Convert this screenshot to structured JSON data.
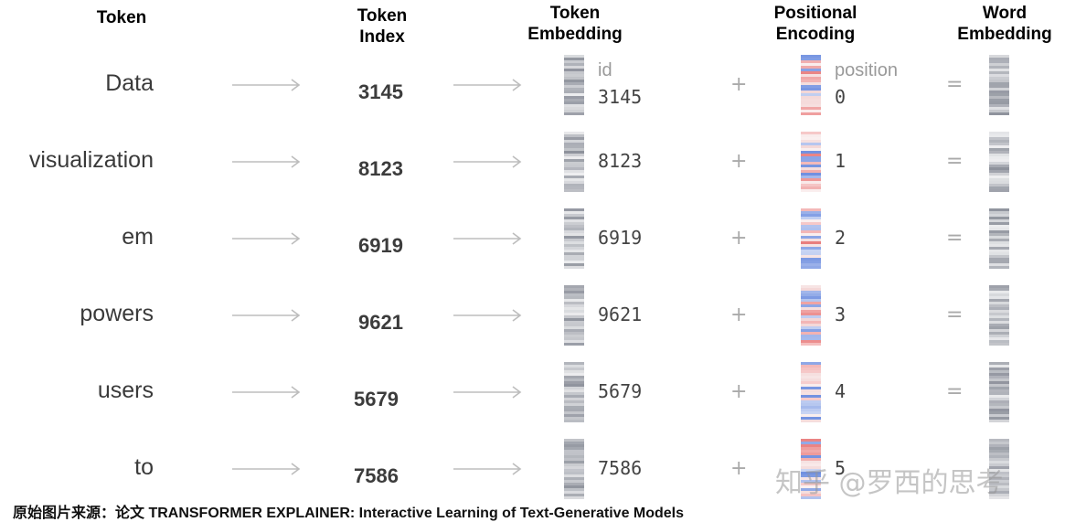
{
  "headers": {
    "token": "Token",
    "token_index": [
      "Token",
      "Index"
    ],
    "token_embedding": [
      "Token",
      "Embedding"
    ],
    "positional_encoding": [
      "Positional",
      "Encoding"
    ],
    "word_embedding": [
      "Word",
      "Embedding"
    ]
  },
  "id_label": "id",
  "position_label": "position",
  "plus_symbol": "+",
  "equals_symbol": "=",
  "rows": [
    {
      "token": "Data",
      "index": "3145",
      "id": "3145",
      "position": "0",
      "show_equals": true
    },
    {
      "token": "visualization",
      "index": "8123",
      "id": "8123",
      "position": "1",
      "show_equals": true
    },
    {
      "token": "em",
      "index": "6919",
      "id": "6919",
      "position": "2",
      "show_equals": true
    },
    {
      "token": "powers",
      "index": "9621",
      "id": "9621",
      "position": "3",
      "show_equals": true
    },
    {
      "token": "users",
      "index": "5679",
      "id": "5679",
      "position": "4",
      "show_equals": true
    },
    {
      "token": "to",
      "index": "7586",
      "id": "7586",
      "position": "5",
      "show_equals": false
    }
  ],
  "colors": {
    "embedding_gray": "#8e929c",
    "encoding_red": "#e87878",
    "encoding_blue": "#6f8fe0"
  },
  "caption": "原始图片来源：论文 TRANSFORMER EXPLAINER: Interactive Learning of Text-Generative Models",
  "watermark": "知乎 @罗西的思考"
}
